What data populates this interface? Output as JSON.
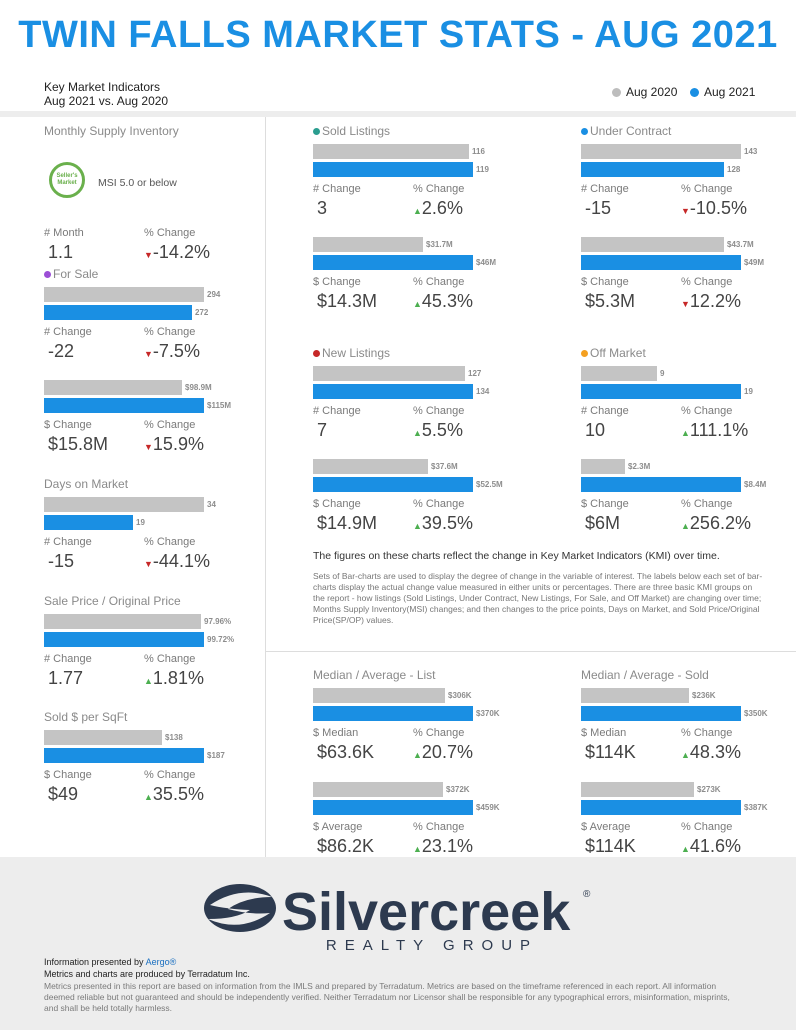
{
  "title": "TWIN FALLS MARKET STATS - AUG 2021",
  "subtitle": {
    "line1": "Key Market Indicators",
    "line2": "Aug 2021 vs. Aug 2020"
  },
  "legend": {
    "prev": "Aug 2020",
    "curr": "Aug 2021"
  },
  "colors": {
    "prev": "#c4c4c4",
    "curr": "#1a8fe3",
    "up": "#4caf50",
    "down": "#c62828"
  },
  "msi": {
    "title": "Monthly Supply Inventory",
    "badge": "Seller's Market",
    "badge_text": "MSI 5.0 or below",
    "left_label": "# Month",
    "left_value": "1.1",
    "right_label": "% Change",
    "right_value": "-14.2%",
    "dir": "down"
  },
  "for_sale": {
    "title": "For Sale",
    "dot": "#9c4fd6",
    "g1": {
      "prev": 294,
      "curr": 272,
      "prev_label": "294",
      "curr_label": "272",
      "left_label": "# Change",
      "left_value": "-22",
      "right_label": "% Change",
      "right_value": "-7.5%",
      "dir": "down"
    },
    "g2": {
      "prev": 98.9,
      "curr": 115,
      "prev_label": "$98.9M",
      "curr_label": "$115M",
      "left_label": "$ Change",
      "left_value": "$15.8M",
      "right_label": "% Change",
      "right_value": "15.9%",
      "dir": "down"
    }
  },
  "dom": {
    "title": "Days on Market",
    "prev": 34,
    "curr": 19,
    "prev_label": "34",
    "curr_label": "19",
    "left_label": "# Change",
    "left_value": "-15",
    "right_label": "% Change",
    "right_value": "-44.1%",
    "dir": "down"
  },
  "spop": {
    "title": "Sale Price / Original Price",
    "prev": 97.96,
    "curr": 99.72,
    "prev_label": "97.96%",
    "curr_label": "99.72%",
    "left_label": "# Change",
    "left_value": "1.77",
    "right_label": "% Change",
    "right_value": "1.81%",
    "dir": "up"
  },
  "sqft": {
    "title": "Sold $ per SqFt",
    "prev": 138,
    "curr": 187,
    "prev_label": "$138",
    "curr_label": "$187",
    "left_label": "$ Change",
    "left_value": "$49",
    "right_label": "% Change",
    "right_value": "35.5%",
    "dir": "up"
  },
  "sold": {
    "title": "Sold Listings",
    "dot": "#2a9d8f",
    "g1": {
      "prev": 116,
      "curr": 119,
      "prev_label": "116",
      "curr_label": "119",
      "left_label": "# Change",
      "left_value": "3",
      "right_label": "% Change",
      "right_value": "2.6%",
      "dir": "up"
    },
    "g2": {
      "prev": 31.7,
      "curr": 46,
      "prev_label": "$31.7M",
      "curr_label": "$46M",
      "left_label": "$ Change",
      "left_value": "$14.3M",
      "right_label": "% Change",
      "right_value": "45.3%",
      "dir": "up"
    }
  },
  "under": {
    "title": "Under Contract",
    "dot": "#1a8fe3",
    "g1": {
      "prev": 143,
      "curr": 128,
      "prev_label": "143",
      "curr_label": "128",
      "left_label": "# Change",
      "left_value": "-15",
      "right_label": "% Change",
      "right_value": "-10.5%",
      "dir": "down"
    },
    "g2": {
      "prev": 43.7,
      "curr": 49,
      "prev_label": "$43.7M",
      "curr_label": "$49M",
      "left_label": "$ Change",
      "left_value": "$5.3M",
      "right_label": "% Change",
      "right_value": "12.2%",
      "dir": "down"
    }
  },
  "newl": {
    "title": "New Listings",
    "dot": "#c62828",
    "g1": {
      "prev": 127,
      "curr": 134,
      "prev_label": "127",
      "curr_label": "134",
      "left_label": "# Change",
      "left_value": "7",
      "right_label": "% Change",
      "right_value": "5.5%",
      "dir": "up"
    },
    "g2": {
      "prev": 37.6,
      "curr": 52.5,
      "prev_label": "$37.6M",
      "curr_label": "$52.5M",
      "left_label": "$ Change",
      "left_value": "$14.9M",
      "right_label": "% Change",
      "right_value": "39.5%",
      "dir": "up"
    }
  },
  "off": {
    "title": "Off Market",
    "dot": "#f4a020",
    "g1": {
      "prev": 9,
      "curr": 19,
      "prev_label": "9",
      "curr_label": "19",
      "left_label": "# Change",
      "left_value": "10",
      "right_label": "% Change",
      "right_value": "111.1%",
      "dir": "up"
    },
    "g2": {
      "prev": 2.3,
      "curr": 8.4,
      "prev_label": "$2.3M",
      "curr_label": "$8.4M",
      "left_label": "$ Change",
      "left_value": "$6M",
      "right_label": "% Change",
      "right_value": "256.2%",
      "dir": "up"
    }
  },
  "note": {
    "heading": "The figures on these charts reflect the change in Key Market Indicators (KMI) over time.",
    "body": "Sets of Bar-charts are used to display the degree of change in the variable of interest. The labels below each set of bar-charts display the actual change value measured in either units or percentages. There are three basic KMI groups on the report - how listings (Sold Listings, Under Contract, New Listings, For Sale, and Off Market) are changing over time; Months Supply Inventory(MSI) changes; and then changes to the price points, Days on Market, and Sold Price/Original Price(SP/OP) values."
  },
  "list": {
    "title": "Median / Average - List",
    "g1": {
      "prev": 306,
      "curr": 370,
      "prev_label": "$306K",
      "curr_label": "$370K",
      "left_label": "$ Median",
      "left_value": "$63.6K",
      "right_label": "% Change",
      "right_value": "20.7%",
      "dir": "up"
    },
    "g2": {
      "prev": 372,
      "curr": 459,
      "prev_label": "$372K",
      "curr_label": "$459K",
      "left_label": "$ Average",
      "left_value": "$86.2K",
      "right_label": "% Change",
      "right_value": "23.1%",
      "dir": "up"
    }
  },
  "soldp": {
    "title": "Median / Average - Sold",
    "g1": {
      "prev": 236,
      "curr": 350,
      "prev_label": "$236K",
      "curr_label": "$350K",
      "left_label": "$ Median",
      "left_value": "$114K",
      "right_label": "% Change",
      "right_value": "48.3%",
      "dir": "up"
    },
    "g2": {
      "prev": 273,
      "curr": 387,
      "prev_label": "$273K",
      "curr_label": "$387K",
      "left_label": "$ Average",
      "left_value": "$114K",
      "right_label": "% Change",
      "right_value": "41.6%",
      "dir": "up"
    }
  },
  "logo": {
    "name": "Silvercreek",
    "tag": "REALTY GROUP",
    "reg": "®"
  },
  "footer": {
    "presented": "Information presented by ",
    "presented_by": "Aergo®",
    "produced": "Metrics and charts are produced by Terradatum Inc.",
    "disclaimer": "Metrics presented in this report are based on information from the IMLS and prepared by Terradatum. Metrics are based on the timeframe referenced in each report. All information deemed reliable but not guaranteed and should be independently verified. Neither Terradatum nor Licensor shall be responsible for any typographical errors, misinformation, misprints, and shall be held totally harmless."
  }
}
